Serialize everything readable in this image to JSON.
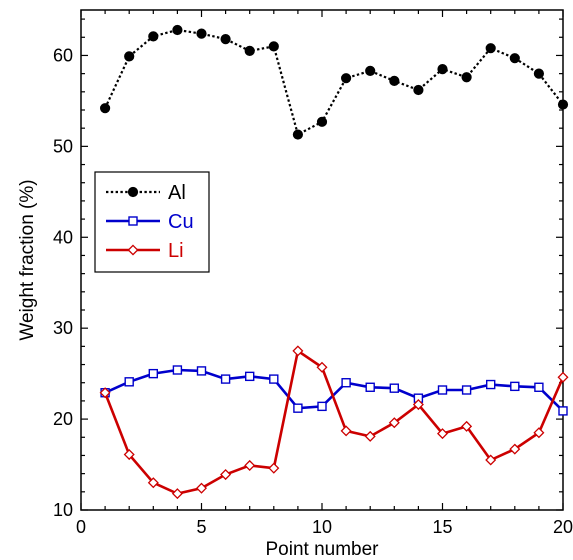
{
  "chart_data": {
    "type": "line",
    "xlabel": "Point number",
    "ylabel": "Weight fraction (%)",
    "xlim": [
      0,
      20
    ],
    "ylim": [
      10,
      65
    ],
    "x_ticks": [
      0,
      5,
      10,
      15,
      20
    ],
    "y_ticks": [
      10,
      20,
      30,
      40,
      50,
      60
    ],
    "x_tick_labels": [
      "0",
      "5",
      "10",
      "15",
      "20"
    ],
    "y_tick_labels": [
      "10",
      "20",
      "30",
      "40",
      "50",
      "60"
    ],
    "grid": false,
    "legend_position": "left-middle",
    "x": [
      1,
      2,
      3,
      4,
      5,
      6,
      7,
      8,
      9,
      10,
      11,
      12,
      13,
      14,
      15,
      16,
      17,
      18,
      19,
      20
    ],
    "series": [
      {
        "name": "Al",
        "color": "#000000",
        "line_style": "dotted",
        "marker": "filled-circle",
        "values": [
          54.2,
          59.9,
          62.1,
          62.8,
          62.4,
          61.8,
          60.5,
          61.0,
          51.3,
          52.7,
          57.5,
          58.3,
          57.2,
          56.2,
          58.5,
          57.6,
          60.8,
          59.7,
          58.0,
          54.6
        ]
      },
      {
        "name": "Cu",
        "color": "#0000cc",
        "line_style": "solid",
        "marker": "open-square",
        "values": [
          22.9,
          24.1,
          25.0,
          25.4,
          25.3,
          24.4,
          24.7,
          24.4,
          21.2,
          21.4,
          24.0,
          23.5,
          23.4,
          22.3,
          23.2,
          23.2,
          23.8,
          23.6,
          23.5,
          20.9
        ]
      },
      {
        "name": "Li",
        "color": "#cc0000",
        "line_style": "solid",
        "marker": "open-diamond",
        "values": [
          22.9,
          16.1,
          13.0,
          11.8,
          12.4,
          13.9,
          14.9,
          14.6,
          27.5,
          25.7,
          18.7,
          18.1,
          19.6,
          21.6,
          18.4,
          19.2,
          15.5,
          16.7,
          18.5,
          24.6
        ]
      }
    ]
  }
}
